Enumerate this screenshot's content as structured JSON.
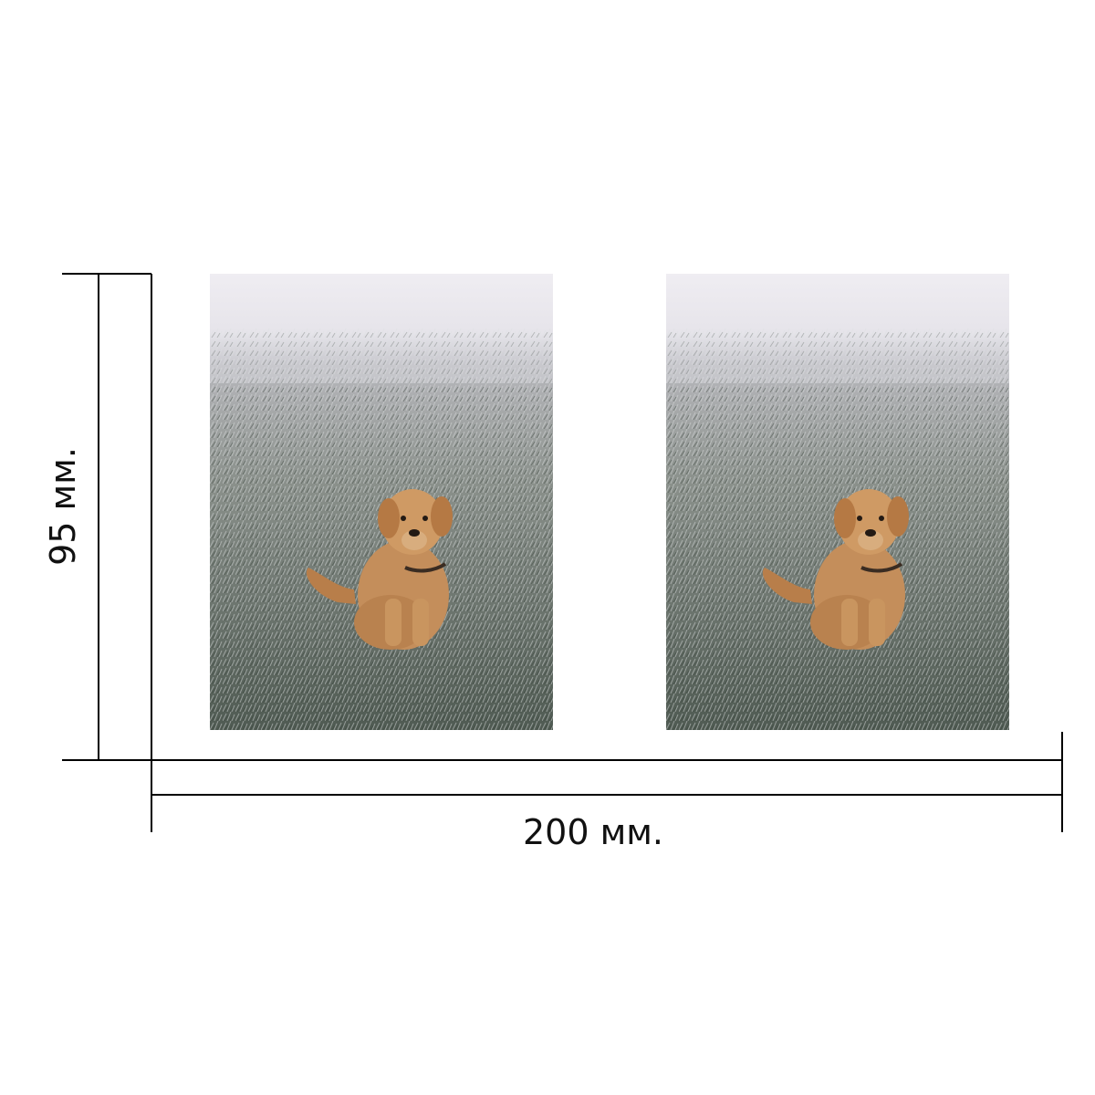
{
  "dimensions": {
    "height_label": "95 мм.",
    "width_label": "200 мм."
  },
  "photos": [
    {
      "subject": "golden-retriever-on-frosty-field"
    },
    {
      "subject": "golden-retriever-on-frosty-field"
    }
  ],
  "colors": {
    "line": "#000000",
    "fog": "#efedf2",
    "frost_grass": "#7d8480",
    "dark_grass": "#3f4a41",
    "dog_fur": "#c48e5b"
  }
}
